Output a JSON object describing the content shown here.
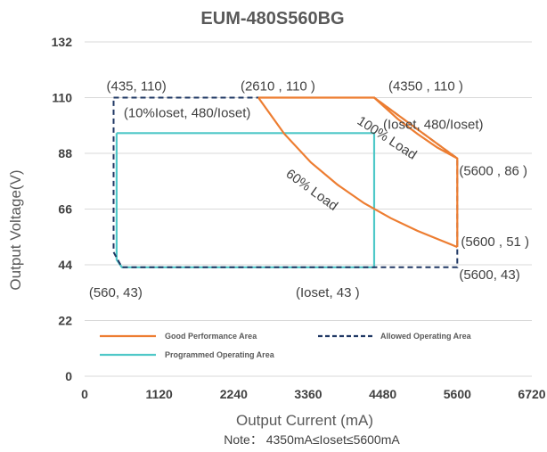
{
  "chart_data": {
    "type": "line",
    "title": "EUM-480S560BG",
    "xlabel": "Output Current (mA)",
    "ylabel": "Output Voltage(V)",
    "note": "Note： 4350mA≤Ioset≤5600mA",
    "xlim": [
      0,
      6720
    ],
    "ylim": [
      0,
      132
    ],
    "xticks": [
      "0",
      "1120",
      "2240",
      "3360",
      "4480",
      "5600",
      "6720"
    ],
    "yticks": [
      "0",
      "22",
      "44",
      "66",
      "88",
      "110",
      "132"
    ],
    "grid": true,
    "legend_position": "bottom-left",
    "series": [
      {
        "name": "Good Performance Area",
        "color": "#ED7D31",
        "style": "solid",
        "points": [
          [
            2610,
            110
          ],
          [
            4350,
            110
          ],
          [
            5600,
            86
          ],
          [
            5600,
            51
          ]
        ],
        "curve_100_load": [
          [
            2610,
            110
          ],
          [
            3000,
            95.7
          ],
          [
            3400,
            84.4
          ],
          [
            3800,
            75.6
          ],
          [
            4200,
            68.3
          ],
          [
            4600,
            62.4
          ],
          [
            5000,
            57.4
          ],
          [
            5300,
            54.2
          ],
          [
            5600,
            51
          ]
        ],
        "curve_60_load": [
          [
            4350,
            110
          ],
          [
            4700,
            101.7
          ],
          [
            5000,
            95.7
          ],
          [
            5300,
            90.3
          ],
          [
            5600,
            86
          ]
        ]
      },
      {
        "name": "Allowed Operating Area",
        "color": "#203864",
        "style": "dashed",
        "points": [
          [
            435,
            110
          ],
          [
            4350,
            110
          ],
          [
            5600,
            86
          ],
          [
            5600,
            43
          ],
          [
            560,
            43
          ],
          [
            435,
            49
          ],
          [
            435,
            110
          ]
        ]
      },
      {
        "name": "Programmed Operating Area",
        "color": "#4FC8C8",
        "style": "solid",
        "points": [
          [
            480,
            96
          ],
          [
            4350,
            96
          ],
          [
            4350,
            43
          ],
          [
            560,
            43
          ],
          [
            480,
            46
          ],
          [
            480,
            96
          ]
        ]
      }
    ],
    "annotations": [
      {
        "text": "(435, 110)",
        "x": 435,
        "y": 110
      },
      {
        "text": "(2610 , 110 )",
        "x": 2610,
        "y": 110
      },
      {
        "text": "(4350 , 110 )",
        "x": 4350,
        "y": 110
      },
      {
        "text": "(10%Ioset, 480/Ioset)",
        "x": 480,
        "y": 96
      },
      {
        "text": "(Ioset, 480/Ioset)",
        "x": 4350,
        "y": 96
      },
      {
        "text": "(5600 , 86 )",
        "x": 5600,
        "y": 86
      },
      {
        "text": "(5600 , 51 )",
        "x": 5600,
        "y": 51
      },
      {
        "text": "(5600, 43)",
        "x": 5600,
        "y": 43
      },
      {
        "text": "(Ioset, 43 )",
        "x": 4350,
        "y": 43
      },
      {
        "text": "(560, 43)",
        "x": 560,
        "y": 43
      }
    ],
    "curve_labels": [
      "100% Load",
      "60% Load"
    ]
  }
}
